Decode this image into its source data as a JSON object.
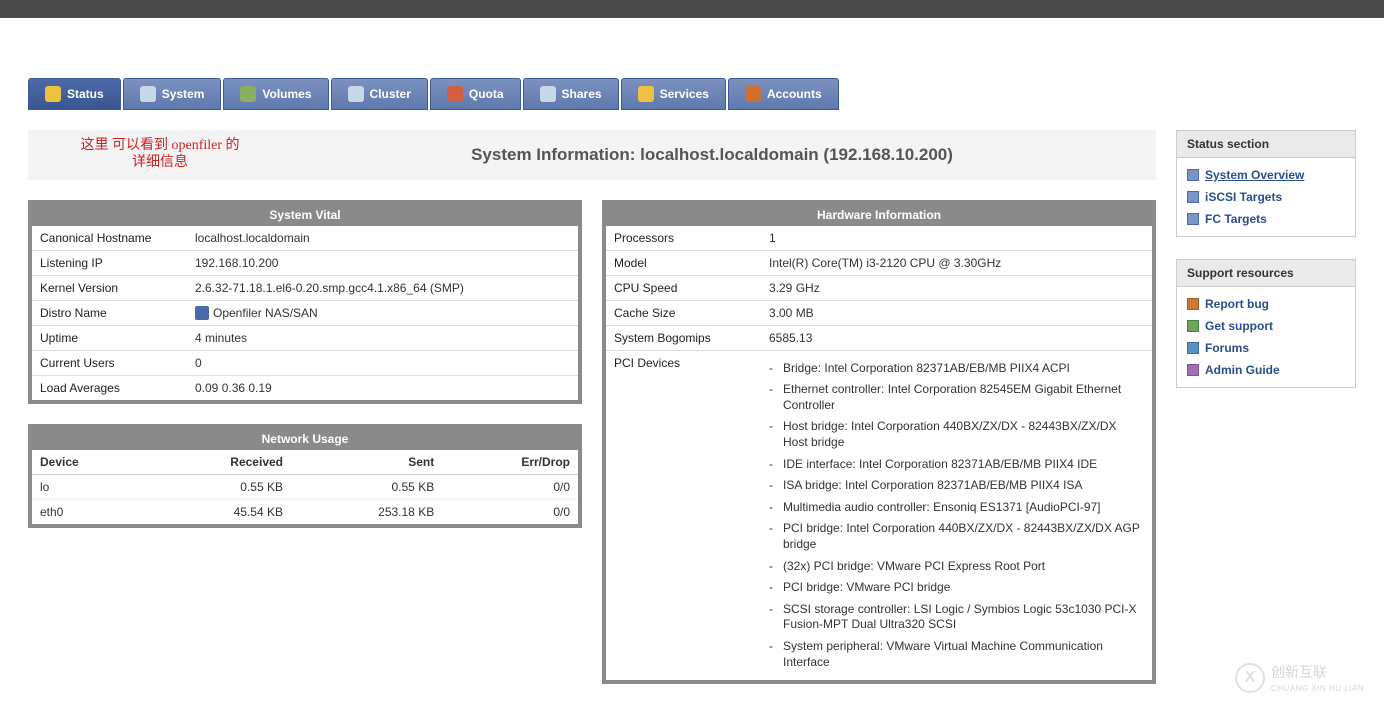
{
  "nav": [
    {
      "label": "Status",
      "icon_color": "#f0c040",
      "active": true
    },
    {
      "label": "System",
      "icon_color": "#c8d8e8",
      "active": false
    },
    {
      "label": "Volumes",
      "icon_color": "#88b060",
      "active": false
    },
    {
      "label": "Cluster",
      "icon_color": "#c8d8e8",
      "active": false
    },
    {
      "label": "Quota",
      "icon_color": "#d06040",
      "active": false
    },
    {
      "label": "Shares",
      "icon_color": "#c8d8e8",
      "active": false
    },
    {
      "label": "Services",
      "icon_color": "#f0c040",
      "active": false
    },
    {
      "label": "Accounts",
      "icon_color": "#d07030",
      "active": false
    }
  ],
  "annotation": {
    "line1": "这里 可以看到 openfiler 的",
    "line2": "详细信息"
  },
  "page_title": "System Information: localhost.localdomain (192.168.10.200)",
  "vital": {
    "header": "System Vital",
    "rows": [
      {
        "k": "Canonical Hostname",
        "v": "localhost.localdomain"
      },
      {
        "k": "Listening IP",
        "v": "192.168.10.200"
      },
      {
        "k": "Kernel Version",
        "v": "2.6.32-71.18.1.el6-0.20.smp.gcc4.1.x86_64 (SMP)"
      },
      {
        "k": "Distro Name",
        "v": "Openfiler NAS/SAN",
        "icon": true
      },
      {
        "k": "Uptime",
        "v": "4 minutes"
      },
      {
        "k": "Current Users",
        "v": "0"
      },
      {
        "k": "Load Averages",
        "v": "0.09 0.36 0.19"
      }
    ]
  },
  "network": {
    "header": "Network Usage",
    "cols": [
      "Device",
      "Received",
      "Sent",
      "Err/Drop"
    ],
    "rows": [
      {
        "device": "lo",
        "recv": "0.55 KB",
        "sent": "0.55 KB",
        "err": "0/0"
      },
      {
        "device": "eth0",
        "recv": "45.54 KB",
        "sent": "253.18 KB",
        "err": "0/0"
      }
    ]
  },
  "hardware": {
    "header": "Hardware Information",
    "rows": [
      {
        "k": "Processors",
        "v": "1"
      },
      {
        "k": "Model",
        "v": "Intel(R) Core(TM) i3-2120 CPU @ 3.30GHz"
      },
      {
        "k": "CPU Speed",
        "v": "3.29 GHz"
      },
      {
        "k": "Cache Size",
        "v": "3.00 MB"
      },
      {
        "k": "System Bogomips",
        "v": "6585.13"
      }
    ],
    "pci_label": "PCI Devices",
    "pci": [
      "Bridge: Intel Corporation 82371AB/EB/MB PIIX4 ACPI",
      "Ethernet controller: Intel Corporation 82545EM Gigabit Ethernet Controller",
      "Host bridge: Intel Corporation 440BX/ZX/DX - 82443BX/ZX/DX Host bridge",
      "IDE interface: Intel Corporation 82371AB/EB/MB PIIX4 IDE",
      "ISA bridge: Intel Corporation 82371AB/EB/MB PIIX4 ISA",
      "Multimedia audio controller: Ensoniq ES1371 [AudioPCI-97]",
      "PCI bridge: Intel Corporation 440BX/ZX/DX - 82443BX/ZX/DX AGP bridge",
      "(32x) PCI bridge: VMware PCI Express Root Port",
      "PCI bridge: VMware PCI bridge",
      "SCSI storage controller: LSI Logic / Symbios Logic 53c1030 PCI-X Fusion-MPT Dual Ultra320 SCSI",
      "System peripheral: VMware Virtual Machine Communication Interface"
    ]
  },
  "status_section": {
    "header": "Status section",
    "items": [
      {
        "label": "System Overview",
        "active": true
      },
      {
        "label": "iSCSI Targets",
        "active": false
      },
      {
        "label": "FC Targets",
        "active": false
      }
    ]
  },
  "support": {
    "header": "Support resources",
    "items": [
      {
        "label": "Report bug",
        "cls": "r"
      },
      {
        "label": "Get support",
        "cls": "g"
      },
      {
        "label": "Forums",
        "cls": "b"
      },
      {
        "label": "Admin Guide",
        "cls": "p"
      }
    ]
  },
  "watermark": {
    "brand": "创新互联",
    "sub": "CHUANG XIN HU LIAN"
  }
}
